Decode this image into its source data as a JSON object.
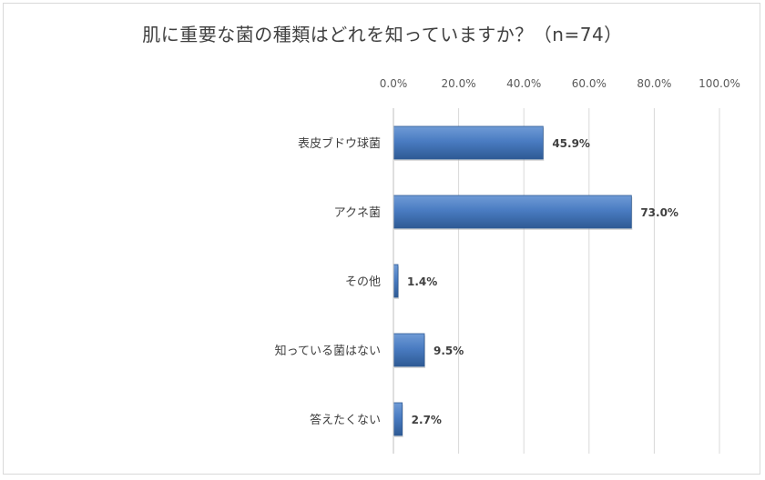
{
  "title": "肌に重要な菌の種類はどれを知っていますか？（n=74）",
  "colors": {
    "bar": "#4a7cc2",
    "bar_dark": "#2e5a94",
    "grid": "#d9d9d9"
  },
  "chart_data": {
    "type": "bar",
    "orientation": "horizontal",
    "title": "肌に重要な菌の種類はどれを知っていますか？（n=74）",
    "categories": [
      "表皮ブドウ球菌",
      "アクネ菌",
      "その他",
      "知っている菌はない",
      "答えたくない"
    ],
    "values": [
      45.9,
      73.0,
      1.4,
      9.5,
      2.7
    ],
    "data_labels": [
      "45.9%",
      "73.0%",
      "1.4%",
      "9.5%",
      "2.7%"
    ],
    "xlim": [
      0,
      100
    ],
    "x_ticks": [
      "0.0%",
      "20.0%",
      "40.0%",
      "60.0%",
      "80.0%",
      "100.0%"
    ],
    "x_tick_values": [
      0,
      20,
      40,
      60,
      80,
      100
    ],
    "x_axis_position": "top",
    "grid": true,
    "legend": "none"
  }
}
